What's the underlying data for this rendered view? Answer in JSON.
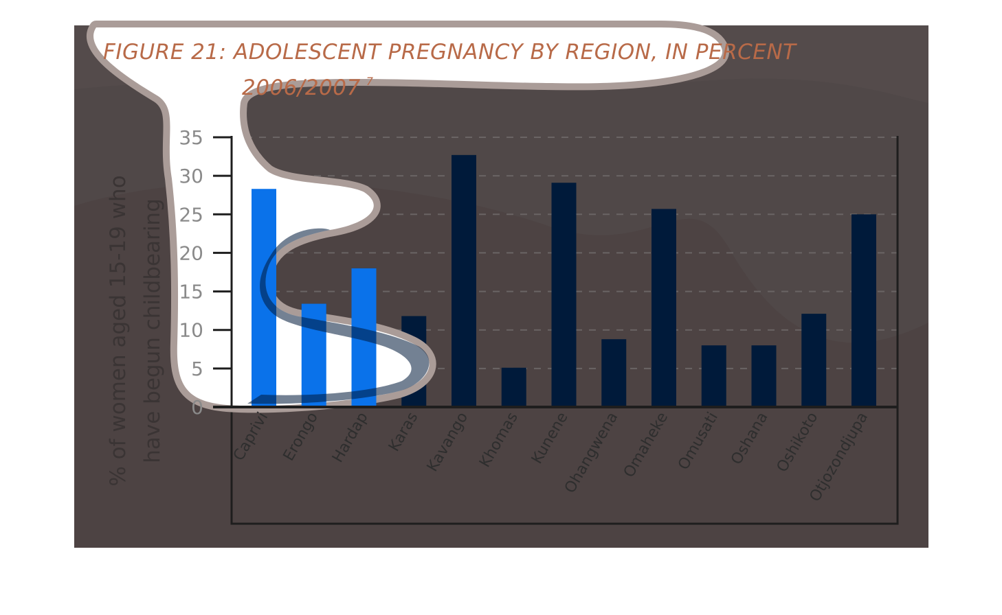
{
  "chart_data": {
    "type": "bar",
    "title_line1": "FIGURE 21: ADOLESCENT PREGNANCY BY REGION, IN PERCENT",
    "title_line2": "2006/2007",
    "title_superscript": "7",
    "ylabel_line1": "% of women aged 15-19 who",
    "ylabel_line2": "have begun childbearing",
    "xlabel": "",
    "ylim": [
      0,
      35
    ],
    "yticks": [
      0,
      5,
      10,
      15,
      20,
      25,
      30,
      35
    ],
    "grid": "horizontal dashed",
    "categories": [
      "Caprivi",
      "Erongo",
      "Hardap",
      "Karas",
      "Kavango",
      "Khomas",
      "Kunene",
      "Ohangwena",
      "Omaheke",
      "Omusati",
      "Oshana",
      "Oshikoto",
      "Otjozondjupa"
    ],
    "values": [
      28.3,
      13.4,
      18.0,
      11.8,
      32.7,
      5.1,
      29.1,
      8.8,
      25.7,
      8.0,
      8.0,
      12.1,
      25.0
    ],
    "colors": {
      "background": "#504848",
      "bar": "#001a3a",
      "bar_highlight": "#0a72ea",
      "title": "#b86a48",
      "axis": "#1e1e1e",
      "grid": "#6a6464",
      "tick_label": "#8a8a8a",
      "category_label": "#2e2e2e",
      "ylabel": "#3a3434",
      "overlay_fill": "#ffffff",
      "overlay_edge": "#aa9c98"
    }
  }
}
